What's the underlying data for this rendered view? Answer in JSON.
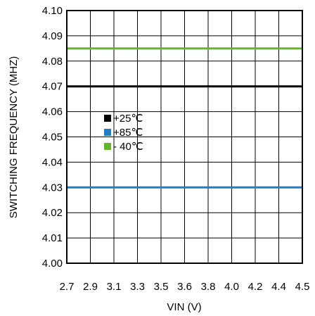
{
  "chart_data": {
    "type": "line",
    "xlabel": "VIN (V)",
    "ylabel": "SWITCHING FREQUENCY (MHZ)",
    "x_tick_labels": [
      "2.7",
      "2.9",
      "3.1",
      "3.3",
      "3.5",
      "3.6",
      "3.8",
      "4.0",
      "4.2",
      "4.4",
      "4.5"
    ],
    "y_tick_labels": [
      "4.00",
      "4.01",
      "4.02",
      "4.03",
      "4.04",
      "4.05",
      "4.06",
      "4.07",
      "4.08",
      "4.09",
      "4.10"
    ],
    "ylim": [
      4.0,
      4.1
    ],
    "grid": true,
    "legend_position": "center-left",
    "series": [
      {
        "name": "+25℃",
        "color": "#000000",
        "values": [
          4.07,
          4.07,
          4.07,
          4.07,
          4.07,
          4.07,
          4.07,
          4.07,
          4.07,
          4.07,
          4.07
        ]
      },
      {
        "name": "+85℃",
        "color": "#1f7fc3",
        "values": [
          4.03,
          4.03,
          4.03,
          4.03,
          4.03,
          4.03,
          4.03,
          4.03,
          4.03,
          4.03,
          4.03
        ]
      },
      {
        "name": "- 40℃",
        "color": "#66b32e",
        "values": [
          4.085,
          4.085,
          4.085,
          4.085,
          4.085,
          4.085,
          4.085,
          4.085,
          4.085,
          4.085,
          4.085
        ]
      }
    ]
  }
}
